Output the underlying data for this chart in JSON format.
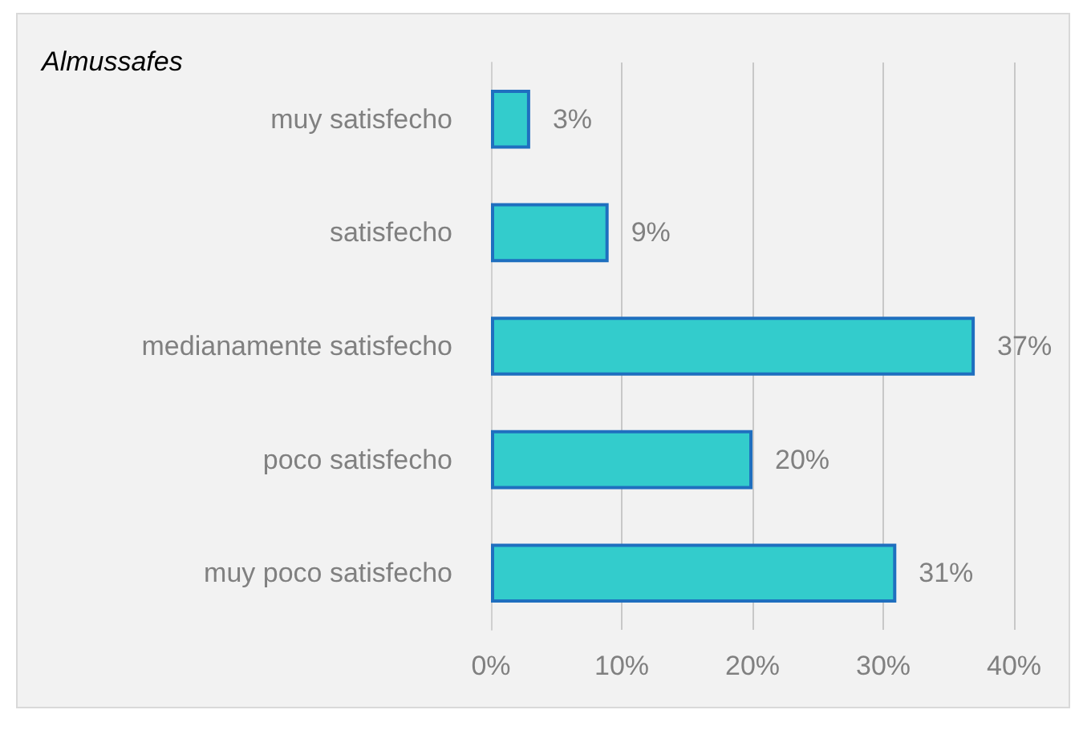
{
  "chart_data": {
    "type": "bar",
    "title": "Almussafes",
    "orientation": "horizontal",
    "categories": [
      "muy satisfecho",
      "satisfecho",
      "medianamente satisfecho",
      "poco satisfecho",
      "muy poco satisfecho"
    ],
    "values": [
      3,
      9,
      37,
      20,
      31
    ],
    "value_labels": [
      "3%",
      "9%",
      "37%",
      "20%",
      "31%"
    ],
    "color": "#33cccc",
    "xlim": [
      0,
      40
    ],
    "xticks": [
      {
        "value": 0,
        "label": "0%"
      },
      {
        "value": 10,
        "label": "10%"
      },
      {
        "value": 20,
        "label": "20%"
      },
      {
        "value": 30,
        "label": "30%"
      },
      {
        "value": 40,
        "label": "40%"
      }
    ],
    "grid": "x"
  }
}
